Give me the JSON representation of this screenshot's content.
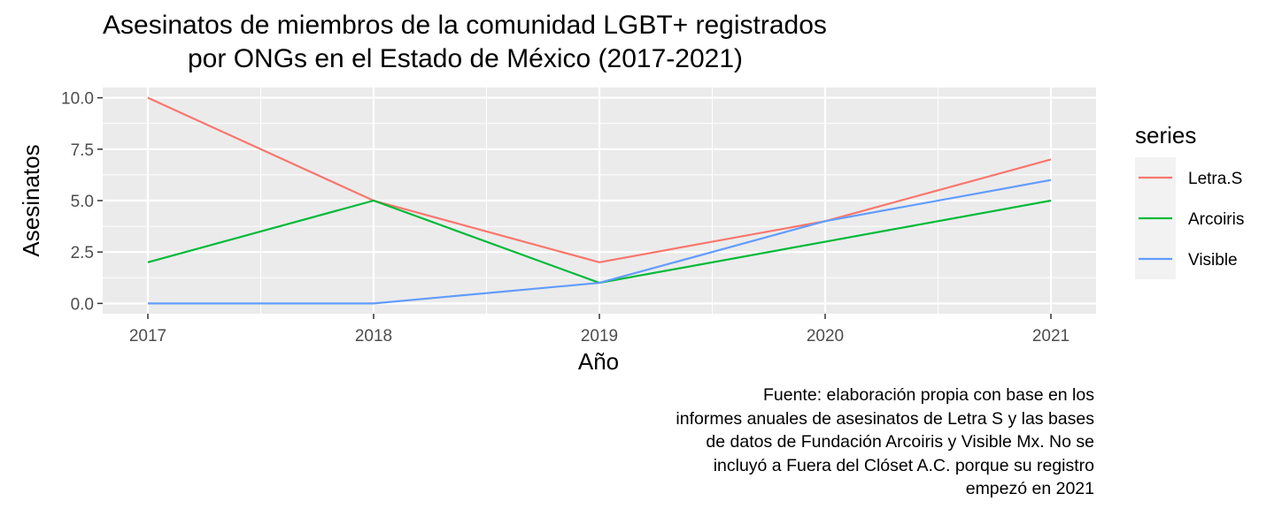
{
  "chart_data": {
    "type": "line",
    "title_lines": [
      "Asesinatos de miembros de la comunidad LGBT+ registrados",
      "por ONGs en el Estado de México (2017-2021)"
    ],
    "xlabel": "Año",
    "ylabel": "Asesinatos",
    "x": [
      2017,
      2018,
      2019,
      2020,
      2021
    ],
    "x_tick_labels": [
      "2017",
      "2018",
      "2019",
      "2020",
      "2021"
    ],
    "y_ticks": [
      0,
      2.5,
      5,
      7.5,
      10
    ],
    "y_tick_labels": [
      "0.0",
      "2.5",
      "5.0",
      "7.5",
      "10.0"
    ],
    "xlim": [
      2016.8,
      2021.2
    ],
    "ylim": [
      -0.5,
      10.5
    ],
    "grid": true,
    "legend": {
      "title": "series",
      "position": "right"
    },
    "series": [
      {
        "name": "Letra.S",
        "color": "#F8766D",
        "values": [
          10,
          5,
          2,
          4,
          7
        ]
      },
      {
        "name": "Arcoiris",
        "color": "#00BA38",
        "values": [
          2,
          5,
          1,
          3,
          5
        ]
      },
      {
        "name": "Visible",
        "color": "#619CFF",
        "values": [
          0,
          0,
          1,
          4,
          6
        ]
      }
    ],
    "caption_lines": [
      "Fuente: elaboración propia con base en los",
      "informes anuales de asesinatos de Letra S y las bases",
      "de datos de Fundación Arcoiris y Visible Mx. No se",
      "incluyó a Fuera del Clóset A.C. porque su registro",
      "empezó en 2021"
    ]
  }
}
